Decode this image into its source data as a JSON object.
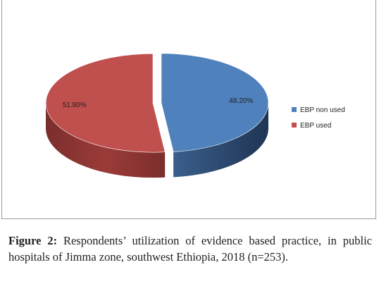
{
  "chart_data": {
    "type": "pie",
    "style": "3d-exploded",
    "slices": [
      {
        "name": "EBP non used",
        "value": 48.2,
        "label": "48.20%",
        "color": "#4f81bd"
      },
      {
        "name": "EBP used",
        "value": 51.8,
        "label": "51.80%",
        "color": "#c0504d"
      }
    ],
    "legend": {
      "position": "right",
      "entries": [
        "EBP non used",
        "EBP used"
      ]
    }
  },
  "caption": {
    "label": "Figure 2:",
    "text": " Respondents’ utilization of evidence based practice, in public hospitals of Jimma zone, southwest Ethiopia, 2018 (n=253)."
  }
}
